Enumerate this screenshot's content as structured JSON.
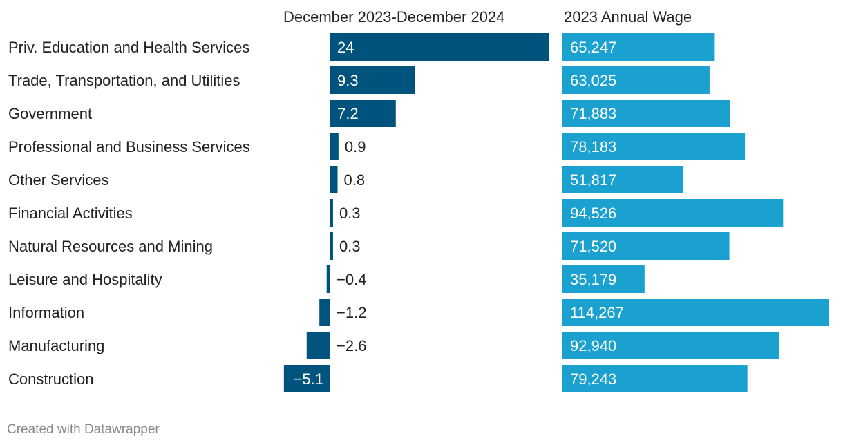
{
  "chart_data": {
    "type": "bar",
    "categories": [
      "Priv. Education and Health Services",
      "Trade, Transportation, and Utilities",
      "Government",
      "Professional and Business Services",
      "Other Services",
      "Financial Activities",
      "Natural Resources and Mining",
      "Leisure and Hospitality",
      "Information",
      "Manufacturing",
      "Construction"
    ],
    "series": [
      {
        "name": "December 2023-December 2024",
        "values": [
          24,
          9.3,
          7.2,
          0.9,
          0.8,
          0.3,
          0.3,
          -0.4,
          -1.2,
          -2.6,
          -5.1
        ],
        "labels": [
          "24",
          "9.3",
          "7.2",
          "0.9",
          "0.8",
          "0.3",
          "0.3",
          "−0.4",
          "−1.2",
          "−2.6",
          "−5.1"
        ],
        "color": "#00537c"
      },
      {
        "name": "2023 Annual Wage",
        "values": [
          65247,
          63025,
          71883,
          78183,
          51817,
          94526,
          71520,
          35179,
          114267,
          92940,
          79243
        ],
        "labels": [
          "65,247",
          "63,025",
          "71,883",
          "78,183",
          "51,817",
          "94,526",
          "71,520",
          "35,179",
          "114,267",
          "92,940",
          "79,243"
        ],
        "color": "#1aa1d0"
      }
    ],
    "xlabel": "",
    "ylabel": ""
  },
  "footer": {
    "credit": "Created with Datawrapper"
  }
}
